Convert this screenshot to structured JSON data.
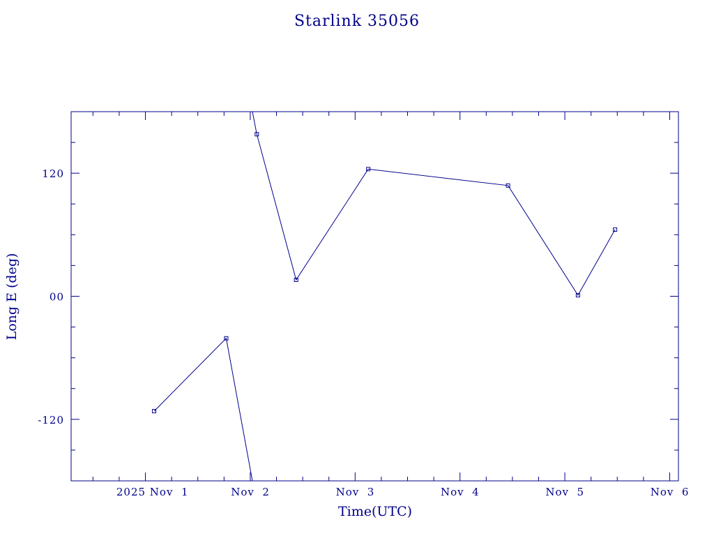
{
  "chart_data": {
    "type": "line",
    "title": "Starlink 35056",
    "xlabel": "Time(UTC)",
    "ylabel": "Long E (deg)",
    "xlim": [
      "2025-10-31T07:00:00",
      "2025-11-06T02:00:00"
    ],
    "ylim": [
      -180,
      180
    ],
    "y_ticks": [
      -120,
      0,
      120
    ],
    "y_tick_labels": [
      "-120",
      "00",
      "120"
    ],
    "x_ticks": [
      "2025-11-01",
      "2025-11-02",
      "2025-11-03",
      "2025-11-04",
      "2025-11-05",
      "2025-11-06"
    ],
    "x_tick_labels": [
      "2025 Nov  1",
      "Nov  2",
      "Nov  3",
      "Nov  4",
      "Nov  5",
      "Nov  6"
    ],
    "grid": false,
    "series": [
      {
        "points": [
          {
            "x": "2025-11-01T02:00:00",
            "y": -112
          },
          {
            "x": "2025-11-01T18:30:00",
            "y": -41
          },
          {
            "x": "2025-11-02T00:30:00",
            "y": -180
          },
          {
            "x": "2025-11-02T00:30:00",
            "y": 180
          },
          {
            "x": "2025-11-02T01:30:00",
            "y": 158
          },
          {
            "x": "2025-11-02T10:30:00",
            "y": 16
          },
          {
            "x": "2025-11-03T03:00:00",
            "y": 124
          },
          {
            "x": "2025-11-04T11:00:00",
            "y": 108
          },
          {
            "x": "2025-11-05T03:00:00",
            "y": 1
          },
          {
            "x": "2025-11-05T11:30:00",
            "y": 65
          }
        ],
        "markers": [
          {
            "x": "2025-11-01T02:00:00",
            "y": -112
          },
          {
            "x": "2025-11-01T18:30:00",
            "y": -41
          },
          {
            "x": "2025-11-02T01:30:00",
            "y": 158
          },
          {
            "x": "2025-11-02T10:30:00",
            "y": 16
          },
          {
            "x": "2025-11-03T03:00:00",
            "y": 124
          },
          {
            "x": "2025-11-04T11:00:00",
            "y": 108
          },
          {
            "x": "2025-11-05T03:00:00",
            "y": 1
          },
          {
            "x": "2025-11-05T11:30:00",
            "y": 65
          }
        ]
      }
    ]
  },
  "colors": {
    "ink": "#00008b",
    "background": "#ffffff"
  }
}
